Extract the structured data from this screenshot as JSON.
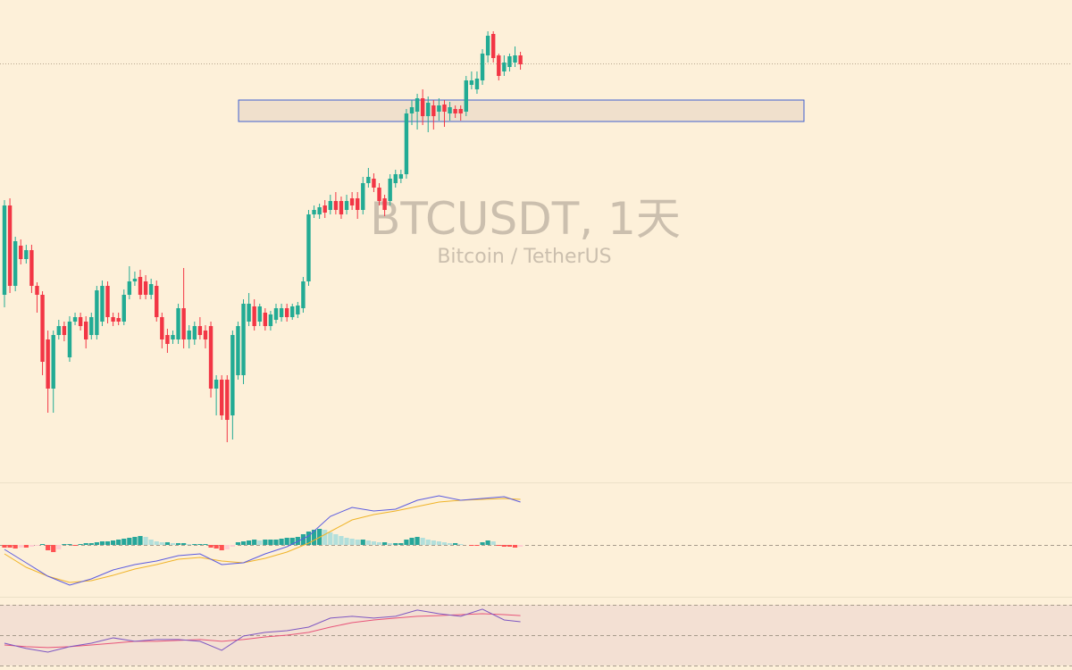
{
  "chart_data": {
    "type": "candlestick",
    "title": "BTCUSDT, 1天",
    "subtitle": "Bitcoin / TetherUS",
    "ylim": [
      0,
      540
    ],
    "up_color": "#22ab94",
    "down_color": "#f23645",
    "last_price": 469,
    "zone": {
      "from": 43.1,
      "to": 147.2,
      "low": 404,
      "high": 428,
      "color": "#3f5fd0"
    },
    "candles": [
      [
        210,
        316,
        196,
        310
      ],
      [
        310,
        318,
        212,
        220
      ],
      [
        220,
        275,
        214,
        270
      ],
      [
        265,
        272,
        244,
        250
      ],
      [
        250,
        266,
        245,
        260
      ],
      [
        260,
        266,
        212,
        220
      ],
      [
        220,
        224,
        190,
        210
      ],
      [
        210,
        214,
        120,
        135
      ],
      [
        160,
        170,
        78,
        105
      ],
      [
        105,
        170,
        78,
        165
      ],
      [
        165,
        182,
        160,
        175
      ],
      [
        175,
        180,
        158,
        165
      ],
      [
        140,
        186,
        135,
        180
      ],
      [
        180,
        190,
        176,
        185
      ],
      [
        185,
        190,
        170,
        175
      ],
      [
        180,
        186,
        150,
        160
      ],
      [
        165,
        190,
        160,
        185
      ],
      [
        165,
        220,
        160,
        215
      ],
      [
        180,
        226,
        175,
        220
      ],
      [
        220,
        225,
        178,
        185
      ],
      [
        185,
        190,
        175,
        180
      ],
      [
        184,
        190,
        176,
        180
      ],
      [
        180,
        216,
        176,
        210
      ],
      [
        210,
        242,
        205,
        225
      ],
      [
        225,
        236,
        220,
        228
      ],
      [
        230,
        238,
        205,
        210
      ],
      [
        225,
        232,
        205,
        210
      ],
      [
        210,
        228,
        205,
        222
      ],
      [
        220,
        226,
        180,
        185
      ],
      [
        185,
        190,
        150,
        160
      ],
      [
        165,
        172,
        145,
        155
      ],
      [
        160,
        170,
        155,
        165
      ],
      [
        160,
        200,
        155,
        195
      ],
      [
        195,
        240,
        150,
        160
      ],
      [
        160,
        176,
        150,
        170
      ],
      [
        160,
        180,
        154,
        175
      ],
      [
        175,
        185,
        160,
        165
      ],
      [
        170,
        176,
        150,
        160
      ],
      [
        175,
        180,
        95,
        105
      ],
      [
        105,
        120,
        75,
        115
      ],
      [
        115,
        120,
        70,
        75
      ],
      [
        115,
        120,
        45,
        70
      ],
      [
        75,
        170,
        48,
        165
      ],
      [
        120,
        180,
        115,
        175
      ],
      [
        120,
        205,
        110,
        200
      ],
      [
        180,
        212,
        175,
        200
      ],
      [
        197,
        205,
        170,
        175
      ],
      [
        180,
        200,
        175,
        197
      ],
      [
        190,
        195,
        170,
        175
      ],
      [
        175,
        192,
        170,
        188
      ],
      [
        182,
        200,
        178,
        195
      ],
      [
        185,
        200,
        180,
        195
      ],
      [
        195,
        200,
        180,
        185
      ],
      [
        185,
        200,
        182,
        197
      ],
      [
        188,
        202,
        184,
        198
      ],
      [
        195,
        230,
        190,
        225
      ],
      [
        225,
        305,
        220,
        300
      ],
      [
        300,
        310,
        296,
        305
      ],
      [
        300,
        312,
        295,
        308
      ],
      [
        310,
        316,
        296,
        302
      ],
      [
        305,
        322,
        300,
        315
      ],
      [
        315,
        325,
        300,
        305
      ],
      [
        315,
        320,
        295,
        300
      ],
      [
        305,
        322,
        300,
        315
      ],
      [
        318,
        325,
        305,
        310
      ],
      [
        318,
        325,
        295,
        305
      ],
      [
        305,
        342,
        300,
        335
      ],
      [
        335,
        352,
        330,
        342
      ],
      [
        340,
        346,
        325,
        330
      ],
      [
        330,
        335,
        310,
        315
      ],
      [
        318,
        322,
        298,
        305
      ],
      [
        315,
        345,
        310,
        340
      ],
      [
        335,
        350,
        330,
        345
      ],
      [
        340,
        350,
        335,
        345
      ],
      [
        345,
        418,
        340,
        413
      ],
      [
        413,
        428,
        400,
        420
      ],
      [
        415,
        435,
        395,
        430
      ],
      [
        430,
        440,
        400,
        410
      ],
      [
        410,
        432,
        392,
        425
      ],
      [
        422,
        428,
        395,
        410
      ],
      [
        415,
        430,
        405,
        422
      ],
      [
        423,
        428,
        398,
        415
      ],
      [
        413,
        426,
        405,
        420
      ],
      [
        418,
        422,
        408,
        413
      ],
      [
        418,
        422,
        405,
        413
      ],
      [
        415,
        455,
        410,
        450
      ],
      [
        445,
        460,
        440,
        450
      ],
      [
        440,
        460,
        435,
        452
      ],
      [
        450,
        485,
        445,
        480
      ],
      [
        478,
        505,
        470,
        500
      ],
      [
        502,
        505,
        470,
        475
      ],
      [
        478,
        480,
        450,
        455
      ],
      [
        460,
        478,
        455,
        470
      ],
      [
        465,
        480,
        460,
        477
      ],
      [
        470,
        488,
        465,
        478
      ],
      [
        478,
        482,
        462,
        468
      ]
    ],
    "line_x": [
      0,
      4,
      8,
      12,
      16,
      20,
      24,
      28,
      32,
      36,
      40,
      44,
      48,
      52,
      56,
      60,
      64,
      68,
      72,
      76,
      80,
      84,
      88,
      92,
      95
    ],
    "macd": {
      "ylim": [
        -58,
        70
      ],
      "histogram": [
        -3,
        -3,
        -4,
        -3,
        -3,
        -2,
        -1,
        1,
        -6,
        -8,
        -5,
        1,
        1,
        -1,
        1,
        2,
        2,
        3,
        4,
        4,
        5,
        6,
        7,
        8,
        9,
        10,
        9,
        6,
        4,
        3,
        3,
        2,
        2,
        2,
        1,
        1,
        1,
        1,
        -3,
        -4,
        -6,
        -5,
        -2,
        3,
        4,
        5,
        6,
        5,
        6,
        6,
        6,
        7,
        8,
        8,
        9,
        12,
        15,
        17,
        18,
        17,
        14,
        12,
        10,
        8,
        7,
        6,
        6,
        5,
        4,
        3,
        3,
        2,
        2,
        2,
        6,
        8,
        9,
        8,
        6,
        5,
        4,
        3,
        2,
        2,
        1,
        0,
        -1,
        -1,
        3,
        5,
        4,
        -1,
        -2,
        -2,
        -3,
        -2
      ],
      "macd": [
        -5,
        -20,
        -35,
        -45,
        -38,
        -28,
        -22,
        -18,
        -12,
        -10,
        -22,
        -20,
        -10,
        -2,
        10,
        32,
        42,
        38,
        40,
        50,
        55,
        50,
        52,
        54,
        48
      ],
      "signal": [
        -10,
        -25,
        -35,
        -42,
        -40,
        -34,
        -27,
        -22,
        -16,
        -14,
        -18,
        -20,
        -15,
        -8,
        2,
        15,
        28,
        34,
        38,
        43,
        48,
        50,
        51,
        52,
        51
      ],
      "macd_color": "#5b5be0",
      "signal_color": "#f0b429",
      "hist_colors": [
        "#26a69a",
        "#b2dfdb",
        "#ff5252",
        "#ffcdd2"
      ]
    },
    "rsi": {
      "ylim": [
        27,
        75.3
      ],
      "levels": [
        70,
        50,
        30
      ],
      "rsi": [
        44.7,
        41.2,
        38.8,
        42.4,
        44.7,
        48.2,
        45.9,
        47.1,
        47.1,
        45.9,
        40,
        49.4,
        51.8,
        52.9,
        55.3,
        61.2,
        62.4,
        61.2,
        62.4,
        66.5,
        64.1,
        62.4,
        67.1,
        60,
        58.8
      ],
      "ma": [
        43.5,
        42.4,
        41.8,
        42.4,
        43.5,
        44.7,
        45.9,
        45.9,
        46.5,
        47.1,
        45.9,
        47.1,
        48.8,
        50,
        51.8,
        55.3,
        58.2,
        60,
        61.2,
        62.4,
        62.9,
        63.5,
        64.1,
        63.5,
        62.9
      ],
      "rsi_color": "#7e57c2",
      "ma_color": "#e8557a",
      "band_color": "#f3e0d3"
    }
  }
}
